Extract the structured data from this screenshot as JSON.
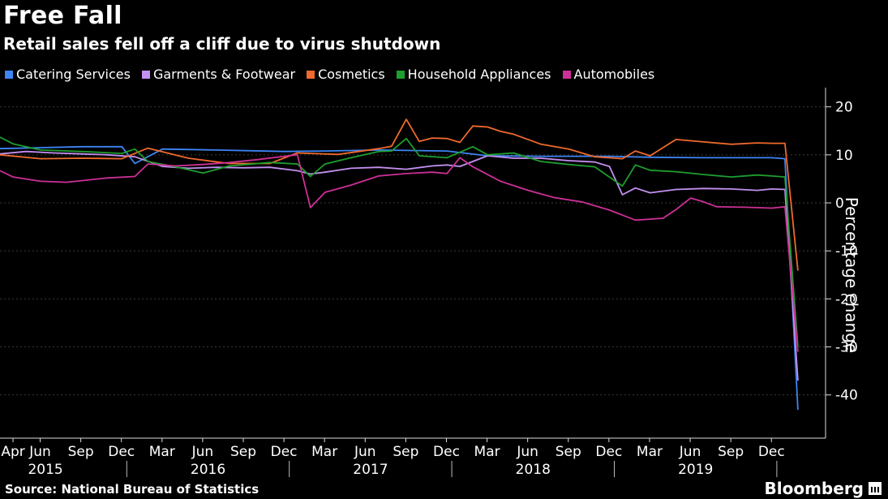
{
  "title": "Free Fall",
  "subtitle": "Retail sales fell off a cliff due to virus shutdown",
  "source": "Source: National Bureau of Statistics",
  "brand": "Bloomberg",
  "chart_data": {
    "type": "line",
    "ylabel": "Percentage change",
    "ylim": [
      -49,
      24
    ],
    "yticks": [
      20,
      10,
      0,
      -10,
      -20,
      -30,
      -40
    ],
    "xlim": [
      2015.17,
      2020.25
    ],
    "month_ticks": [
      {
        "label": "Apr",
        "t": 2015.25
      },
      {
        "label": "Jun",
        "t": 2015.417
      },
      {
        "label": "Sep",
        "t": 2015.667
      },
      {
        "label": "Dec",
        "t": 2015.917
      },
      {
        "label": "Mar",
        "t": 2016.167
      },
      {
        "label": "Jun",
        "t": 2016.417
      },
      {
        "label": "Sep",
        "t": 2016.667
      },
      {
        "label": "Dec",
        "t": 2016.917
      },
      {
        "label": "Mar",
        "t": 2017.167
      },
      {
        "label": "Jun",
        "t": 2017.417
      },
      {
        "label": "Sep",
        "t": 2017.667
      },
      {
        "label": "Dec",
        "t": 2017.917
      },
      {
        "label": "Mar",
        "t": 2018.167
      },
      {
        "label": "Jun",
        "t": 2018.417
      },
      {
        "label": "Sep",
        "t": 2018.667
      },
      {
        "label": "Dec",
        "t": 2018.917
      },
      {
        "label": "Mar",
        "t": 2019.167
      },
      {
        "label": "Jun",
        "t": 2019.417
      },
      {
        "label": "Sep",
        "t": 2019.667
      },
      {
        "label": "Dec",
        "t": 2019.917
      }
    ],
    "year_labels": [
      {
        "label": "2015",
        "t": 2015.5
      },
      {
        "label": "2016",
        "t": 2016.5
      },
      {
        "label": "2017",
        "t": 2017.5
      },
      {
        "label": "2018",
        "t": 2018.5
      },
      {
        "label": "2019",
        "t": 2019.5
      }
    ],
    "year_dividers": [
      2016.0,
      2017.0,
      2018.0,
      2019.0,
      2020.0
    ],
    "legend_position": "top-left",
    "series": [
      {
        "name": "Catering Services",
        "color": "#3d85f5",
        "x": [
          2015.17,
          2015.42,
          2015.67,
          2015.92,
          2016.0,
          2016.17,
          2016.5,
          2016.92,
          2017.17,
          2017.5,
          2017.92,
          2018.17,
          2018.5,
          2018.92,
          2019.17,
          2019.5,
          2019.92,
          2020.0,
          2020.08
        ],
        "y": [
          11.3,
          11.5,
          11.7,
          11.7,
          8.2,
          11.2,
          11.0,
          10.7,
          10.8,
          11.0,
          10.8,
          9.8,
          9.7,
          9.7,
          9.5,
          9.4,
          9.4,
          9.2,
          -43.1
        ]
      },
      {
        "name": "Garments & Footwear",
        "color": "#c490f0",
        "x": [
          2015.17,
          2015.33,
          2015.5,
          2015.67,
          2015.83,
          2016.0,
          2016.17,
          2016.33,
          2016.5,
          2016.67,
          2016.83,
          2017.0,
          2017.08,
          2017.17,
          2017.33,
          2017.5,
          2017.67,
          2017.83,
          2017.92,
          2018.0,
          2018.17,
          2018.33,
          2018.5,
          2018.67,
          2018.83,
          2018.92,
          2019.0,
          2019.08,
          2019.17,
          2019.33,
          2019.5,
          2019.67,
          2019.83,
          2019.92,
          2020.0,
          2020.08
        ],
        "y": [
          10.2,
          10.7,
          10.4,
          10.2,
          10.0,
          9.6,
          7.6,
          7.2,
          7.4,
          7.3,
          7.4,
          6.7,
          6.0,
          6.4,
          7.2,
          7.4,
          7.0,
          7.7,
          7.9,
          7.6,
          9.8,
          9.3,
          9.3,
          8.8,
          8.5,
          7.6,
          1.7,
          3.1,
          2.1,
          2.8,
          3.0,
          2.9,
          2.6,
          2.9,
          2.8,
          -37.0
        ]
      },
      {
        "name": "Cosmetics",
        "color": "#ef6a2c",
        "x": [
          2015.17,
          2015.42,
          2015.67,
          2015.92,
          2016.08,
          2016.33,
          2016.58,
          2016.83,
          2017.0,
          2017.25,
          2017.5,
          2017.58,
          2017.67,
          2017.75,
          2017.83,
          2017.92,
          2018.0,
          2018.08,
          2018.17,
          2018.25,
          2018.33,
          2018.5,
          2018.67,
          2018.83,
          2019.0,
          2019.08,
          2019.17,
          2019.33,
          2019.5,
          2019.67,
          2019.83,
          2019.92,
          2020.0,
          2020.08
        ],
        "y": [
          10.0,
          9.2,
          9.3,
          9.2,
          11.4,
          9.3,
          8.2,
          8.2,
          10.4,
          10.1,
          11.3,
          11.8,
          17.4,
          12.8,
          13.5,
          13.4,
          12.6,
          16.0,
          15.8,
          14.9,
          14.3,
          12.2,
          11.2,
          9.6,
          9.2,
          10.8,
          9.8,
          13.2,
          12.7,
          12.2,
          12.5,
          12.4,
          12.4,
          -14.1
        ]
      },
      {
        "name": "Household Appliances",
        "color": "#1e9e2e",
        "x": [
          2015.17,
          2015.25,
          2015.42,
          2015.67,
          2015.92,
          2016.0,
          2016.08,
          2016.25,
          2016.42,
          2016.58,
          2016.83,
          2017.0,
          2017.08,
          2017.17,
          2017.33,
          2017.5,
          2017.58,
          2017.67,
          2017.75,
          2017.92,
          2018.08,
          2018.17,
          2018.33,
          2018.5,
          2018.67,
          2018.83,
          2019.0,
          2019.08,
          2019.17,
          2019.33,
          2019.5,
          2019.67,
          2019.83,
          2019.92,
          2020.0,
          2020.08
        ],
        "y": [
          13.7,
          12.3,
          11.0,
          10.7,
          10.3,
          11.2,
          8.6,
          7.5,
          6.2,
          7.7,
          8.4,
          8.1,
          5.5,
          8.1,
          9.4,
          10.7,
          10.8,
          13.4,
          9.8,
          9.4,
          11.7,
          10.0,
          10.4,
          8.6,
          8.0,
          7.5,
          3.5,
          7.9,
          6.8,
          6.5,
          5.9,
          5.4,
          5.8,
          5.6,
          5.4,
          -30.0
        ]
      },
      {
        "name": "Automobiles",
        "color": "#cc3096",
        "x": [
          2015.17,
          2015.25,
          2015.42,
          2015.58,
          2015.83,
          2016.0,
          2016.08,
          2016.25,
          2016.42,
          2016.58,
          2016.75,
          2016.92,
          2017.0,
          2017.08,
          2017.17,
          2017.33,
          2017.5,
          2017.67,
          2017.83,
          2017.92,
          2018.0,
          2018.08,
          2018.25,
          2018.42,
          2018.58,
          2018.75,
          2018.92,
          2019.08,
          2019.25,
          2019.33,
          2019.42,
          2019.5,
          2019.58,
          2019.75,
          2019.83,
          2019.92,
          2020.0,
          2020.08
        ],
        "y": [
          6.7,
          5.4,
          4.5,
          4.3,
          5.2,
          5.5,
          8.1,
          7.7,
          8.0,
          8.4,
          9.0,
          9.7,
          10.0,
          -1.0,
          2.2,
          3.7,
          5.6,
          6.1,
          6.4,
          6.1,
          9.4,
          7.5,
          4.5,
          2.6,
          1.1,
          0.2,
          -1.5,
          -3.6,
          -3.2,
          -1.4,
          1.0,
          0.2,
          -0.8,
          -0.9,
          -1.0,
          -1.1,
          -0.8,
          -31.0
        ]
      }
    ]
  }
}
